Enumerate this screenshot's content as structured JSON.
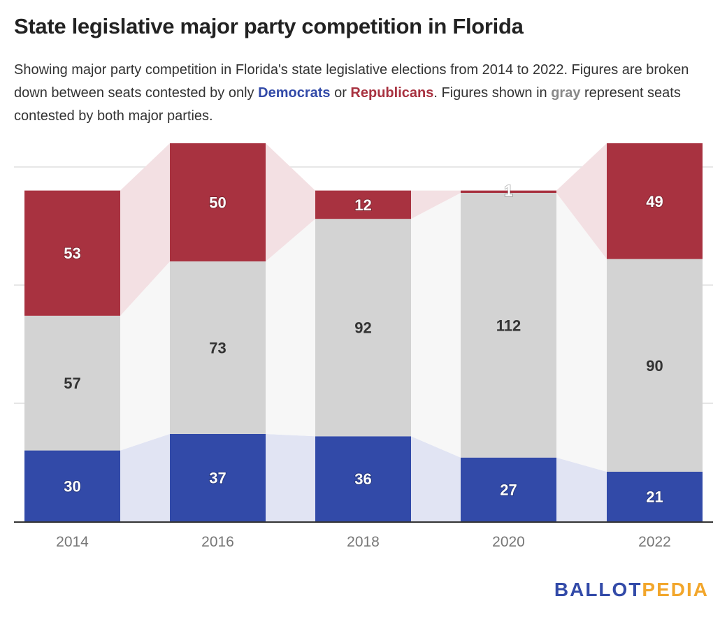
{
  "title": "State legislative major party competition in Florida",
  "subtitle": {
    "part1": "Showing major party competition in Florida's state legislative elections from 2014 to 2022. Figures are broken down between seats contested by only ",
    "democrats": "Democrats",
    "part2": " or ",
    "republicans": "Republicans",
    "part3": ". Figures shown in ",
    "gray": "gray",
    "part4": " represent seats contested by both major parties."
  },
  "logo": {
    "part1": "BALLOT",
    "part2": "PEDIA"
  },
  "colors": {
    "democrats": "#324aa8",
    "republicans": "#a83240",
    "both": "#d3d3d3",
    "dem_band": "#e1e4f3",
    "rep_band": "#f3e0e3",
    "both_band": "#f7f7f7"
  },
  "chart_data": {
    "type": "bar",
    "stacked": true,
    "title": "State legislative major party competition in Florida",
    "xlabel": "",
    "ylabel": "",
    "categories": [
      "2014",
      "2016",
      "2018",
      "2020",
      "2022"
    ],
    "series": [
      {
        "name": "Democrats only",
        "values": [
          30,
          37,
          36,
          27,
          21
        ]
      },
      {
        "name": "Both major parties",
        "values": [
          57,
          73,
          92,
          112,
          90
        ]
      },
      {
        "name": "Republicans only",
        "values": [
          53,
          50,
          12,
          1,
          49
        ]
      }
    ],
    "ylim": [
      0,
      160
    ],
    "gridlines": [
      50,
      100,
      150
    ],
    "grid": true,
    "legend": "inline in subtitle"
  }
}
